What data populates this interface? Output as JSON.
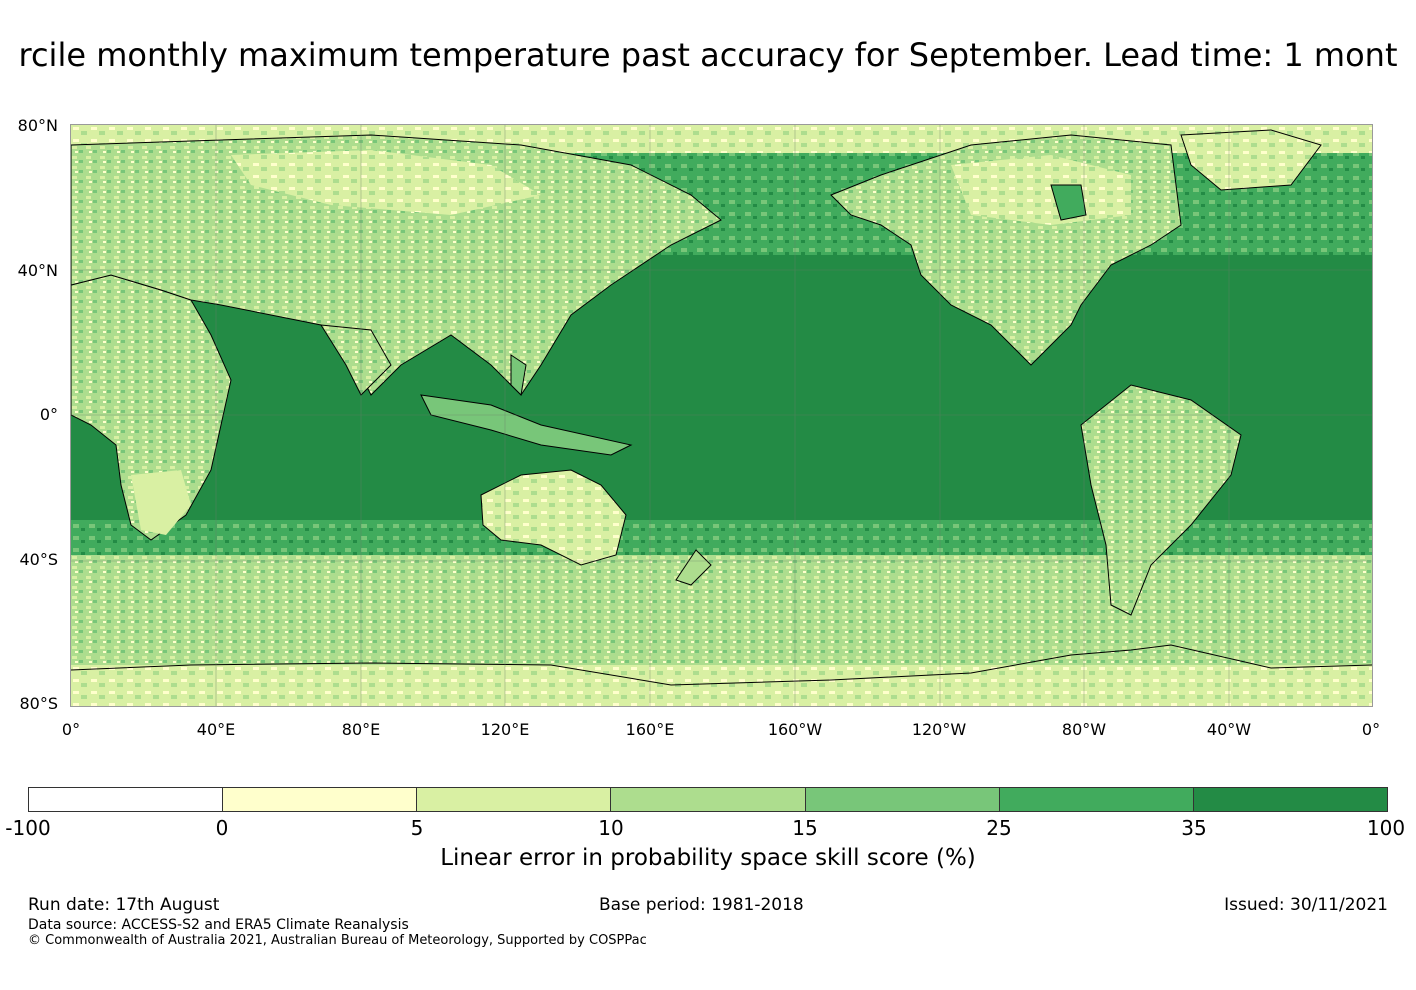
{
  "title": "rcile monthly maximum temperature past accuracy for September. Lead time: 1 mont",
  "map": {
    "lat_labels": [
      "80°N",
      "40°N",
      "0°",
      "40°S",
      "80°S"
    ],
    "lon_labels": [
      "0°",
      "40°E",
      "80°E",
      "120°E",
      "160°E",
      "160°W",
      "120°W",
      "80°W",
      "40°W",
      "0°"
    ],
    "ocean_color": "#238b45",
    "land_palette": [
      "#ffffcc",
      "#d9f0a3",
      "#addd8e",
      "#78c679",
      "#41ab5d",
      "#238b45"
    ]
  },
  "colorbar": {
    "ticks": [
      "-100",
      "0",
      "5",
      "10",
      "15",
      "25",
      "35",
      "100"
    ],
    "colors": [
      "#ffffff",
      "#ffffcc",
      "#d9f0a3",
      "#addd8e",
      "#78c679",
      "#41ab5d",
      "#238b45"
    ],
    "label": "Linear error in probability space skill score (%)"
  },
  "footer": {
    "run_date": "Run date: 17th August",
    "base_period": "Base period: 1981-2018",
    "issued": "Issued: 30/11/2021",
    "data_source": "Data source: ACCESS-S2 and ERA5 Climate Reanalysis",
    "copyright": "© Commonwealth of Australia 2021, Australian Bureau of Meteorology, Supported by COSPPac"
  }
}
